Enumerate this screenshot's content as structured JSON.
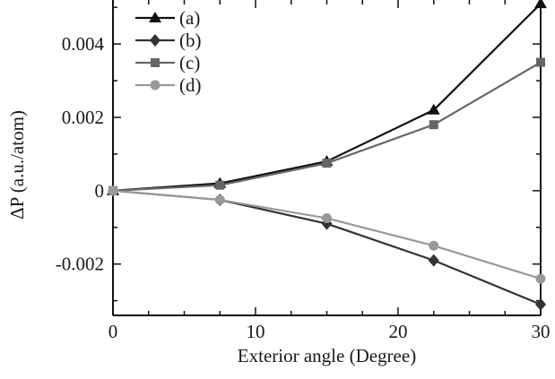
{
  "chart_data": {
    "type": "line",
    "xlabel": "Exterior angle (Degree)",
    "ylabel": "ΔP (a.u./atom)",
    "xlim": [
      0,
      30
    ],
    "ylim": [
      -0.0034,
      0.0052
    ],
    "x_ticks": [
      0,
      10,
      20,
      30
    ],
    "x_tick_labels": [
      "0",
      "10",
      "20",
      "30"
    ],
    "y_ticks": [
      -0.002,
      0,
      0.002,
      0.004
    ],
    "y_tick_labels": [
      "-0.002",
      "0",
      "0.002",
      "0.004"
    ],
    "grid": false,
    "legend_position": "top-left",
    "x": [
      0,
      7.5,
      15,
      22.5,
      30
    ],
    "series": [
      {
        "name": "(a)",
        "marker": "triangle",
        "color": "#111111",
        "values": [
          0,
          0.0002,
          0.0008,
          0.0022,
          0.0051
        ]
      },
      {
        "name": "(b)",
        "marker": "diamond",
        "color": "#333333",
        "values": [
          0,
          -0.00025,
          -0.0009,
          -0.0019,
          -0.0031
        ]
      },
      {
        "name": "(c)",
        "marker": "square",
        "color": "#666666",
        "values": [
          0,
          0.00015,
          0.00075,
          0.0018,
          0.0035
        ]
      },
      {
        "name": "(d)",
        "marker": "circle",
        "color": "#999999",
        "values": [
          0,
          -0.00025,
          -0.00075,
          -0.0015,
          -0.0024
        ]
      }
    ]
  }
}
